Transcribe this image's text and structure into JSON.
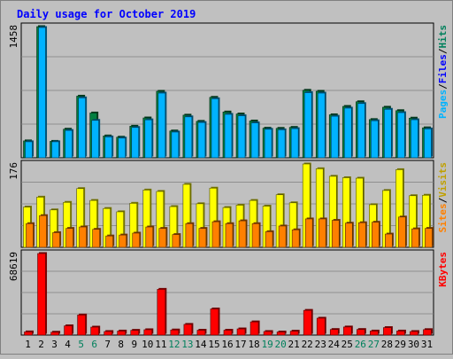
{
  "chart_data": [
    {
      "type": "bar",
      "title": "Daily usage for October 2019",
      "ylabel_parts": [
        "Pages",
        "/",
        "Files",
        "/",
        "Hits"
      ],
      "ymax_label": "1458",
      "ylim": [
        0,
        1458
      ],
      "categories": [
        "1",
        "2",
        "3",
        "4",
        "5",
        "6",
        "7",
        "8",
        "9",
        "10",
        "11",
        "12",
        "13",
        "14",
        "15",
        "16",
        "17",
        "18",
        "19",
        "20",
        "21",
        "22",
        "23",
        "24",
        "25",
        "26",
        "27",
        "28",
        "29",
        "30",
        "31"
      ],
      "series": [
        {
          "name": "Hits",
          "values": [
            188,
            1458,
            183,
            318,
            685,
            498,
            243,
            229,
            351,
            443,
            739,
            298,
            474,
            405,
            672,
            509,
            487,
            409,
            329,
            327,
            338,
            750,
            739,
            478,
            571,
            623,
            425,
            562,
            524,
            441,
            333
          ]
        },
        {
          "name": "Files",
          "values": [
            178,
            1448,
            178,
            304,
            666,
            416,
            232,
            219,
            337,
            422,
            719,
            286,
            455,
            392,
            656,
            483,
            467,
            388,
            317,
            311,
            324,
            724,
            719,
            462,
            552,
            603,
            412,
            539,
            502,
            423,
            321
          ]
        },
        {
          "name": "Pages",
          "values": [
            0,
            0,
            0,
            0,
            0,
            0,
            0,
            0,
            0,
            0,
            0,
            0,
            0,
            0,
            0,
            0,
            0,
            0,
            0,
            0,
            0,
            0,
            0,
            0,
            0,
            0,
            0,
            0,
            0,
            0,
            0
          ]
        }
      ],
      "colors": {
        "Hits": "#007f3f",
        "Files": "#00b3ff",
        "Pages": "#0000cc"
      }
    },
    {
      "type": "bar",
      "ylabel_parts": [
        "Sites",
        "/",
        "Visits"
      ],
      "ymax_label": "176",
      "ylim": [
        0,
        176
      ],
      "series": [
        {
          "name": "Visits",
          "values": [
            85,
            106,
            79,
            95,
            124,
            99,
            82,
            75,
            93,
            121,
            118,
            86,
            133,
            92,
            125,
            84,
            89,
            99,
            87,
            111,
            94,
            176,
            166,
            150,
            147,
            146,
            90,
            120,
            164,
            109,
            110
          ]
        },
        {
          "name": "Sites",
          "values": [
            50,
            67,
            31,
            40,
            43,
            38,
            24,
            26,
            30,
            43,
            40,
            27,
            50,
            40,
            54,
            50,
            56,
            50,
            33,
            45,
            37,
            60,
            60,
            57,
            51,
            52,
            53,
            28,
            64,
            39,
            40
          ]
        }
      ],
      "colors": {
        "Visits": "#ffff00",
        "Sites": "#ff8000"
      }
    },
    {
      "type": "bar",
      "ylabel_parts": [
        "KBytes"
      ],
      "ymax_label": "68619",
      "ylim": [
        0,
        68619
      ],
      "series": [
        {
          "name": "KBytes",
          "values": [
            2700,
            68619,
            2400,
            7800,
            16900,
            6700,
            3000,
            3400,
            4000,
            4500,
            38500,
            4300,
            9000,
            4100,
            22000,
            4100,
            5200,
            11100,
            3000,
            2600,
            3300,
            20800,
            14200,
            4700,
            6800,
            4700,
            3400,
            6300,
            3400,
            3000,
            4600
          ]
        }
      ],
      "colors": {
        "KBytes": "#ff0000"
      }
    }
  ],
  "weekend_days": [
    "5",
    "6",
    "12",
    "13",
    "19",
    "20",
    "26",
    "27"
  ],
  "colors": {
    "background": "#c0c0c0",
    "plot": "#c0c0c0",
    "title": "#0000ff",
    "weekday_label": "#000000",
    "weekend_label": "#00805c",
    "grid": "#808080"
  }
}
